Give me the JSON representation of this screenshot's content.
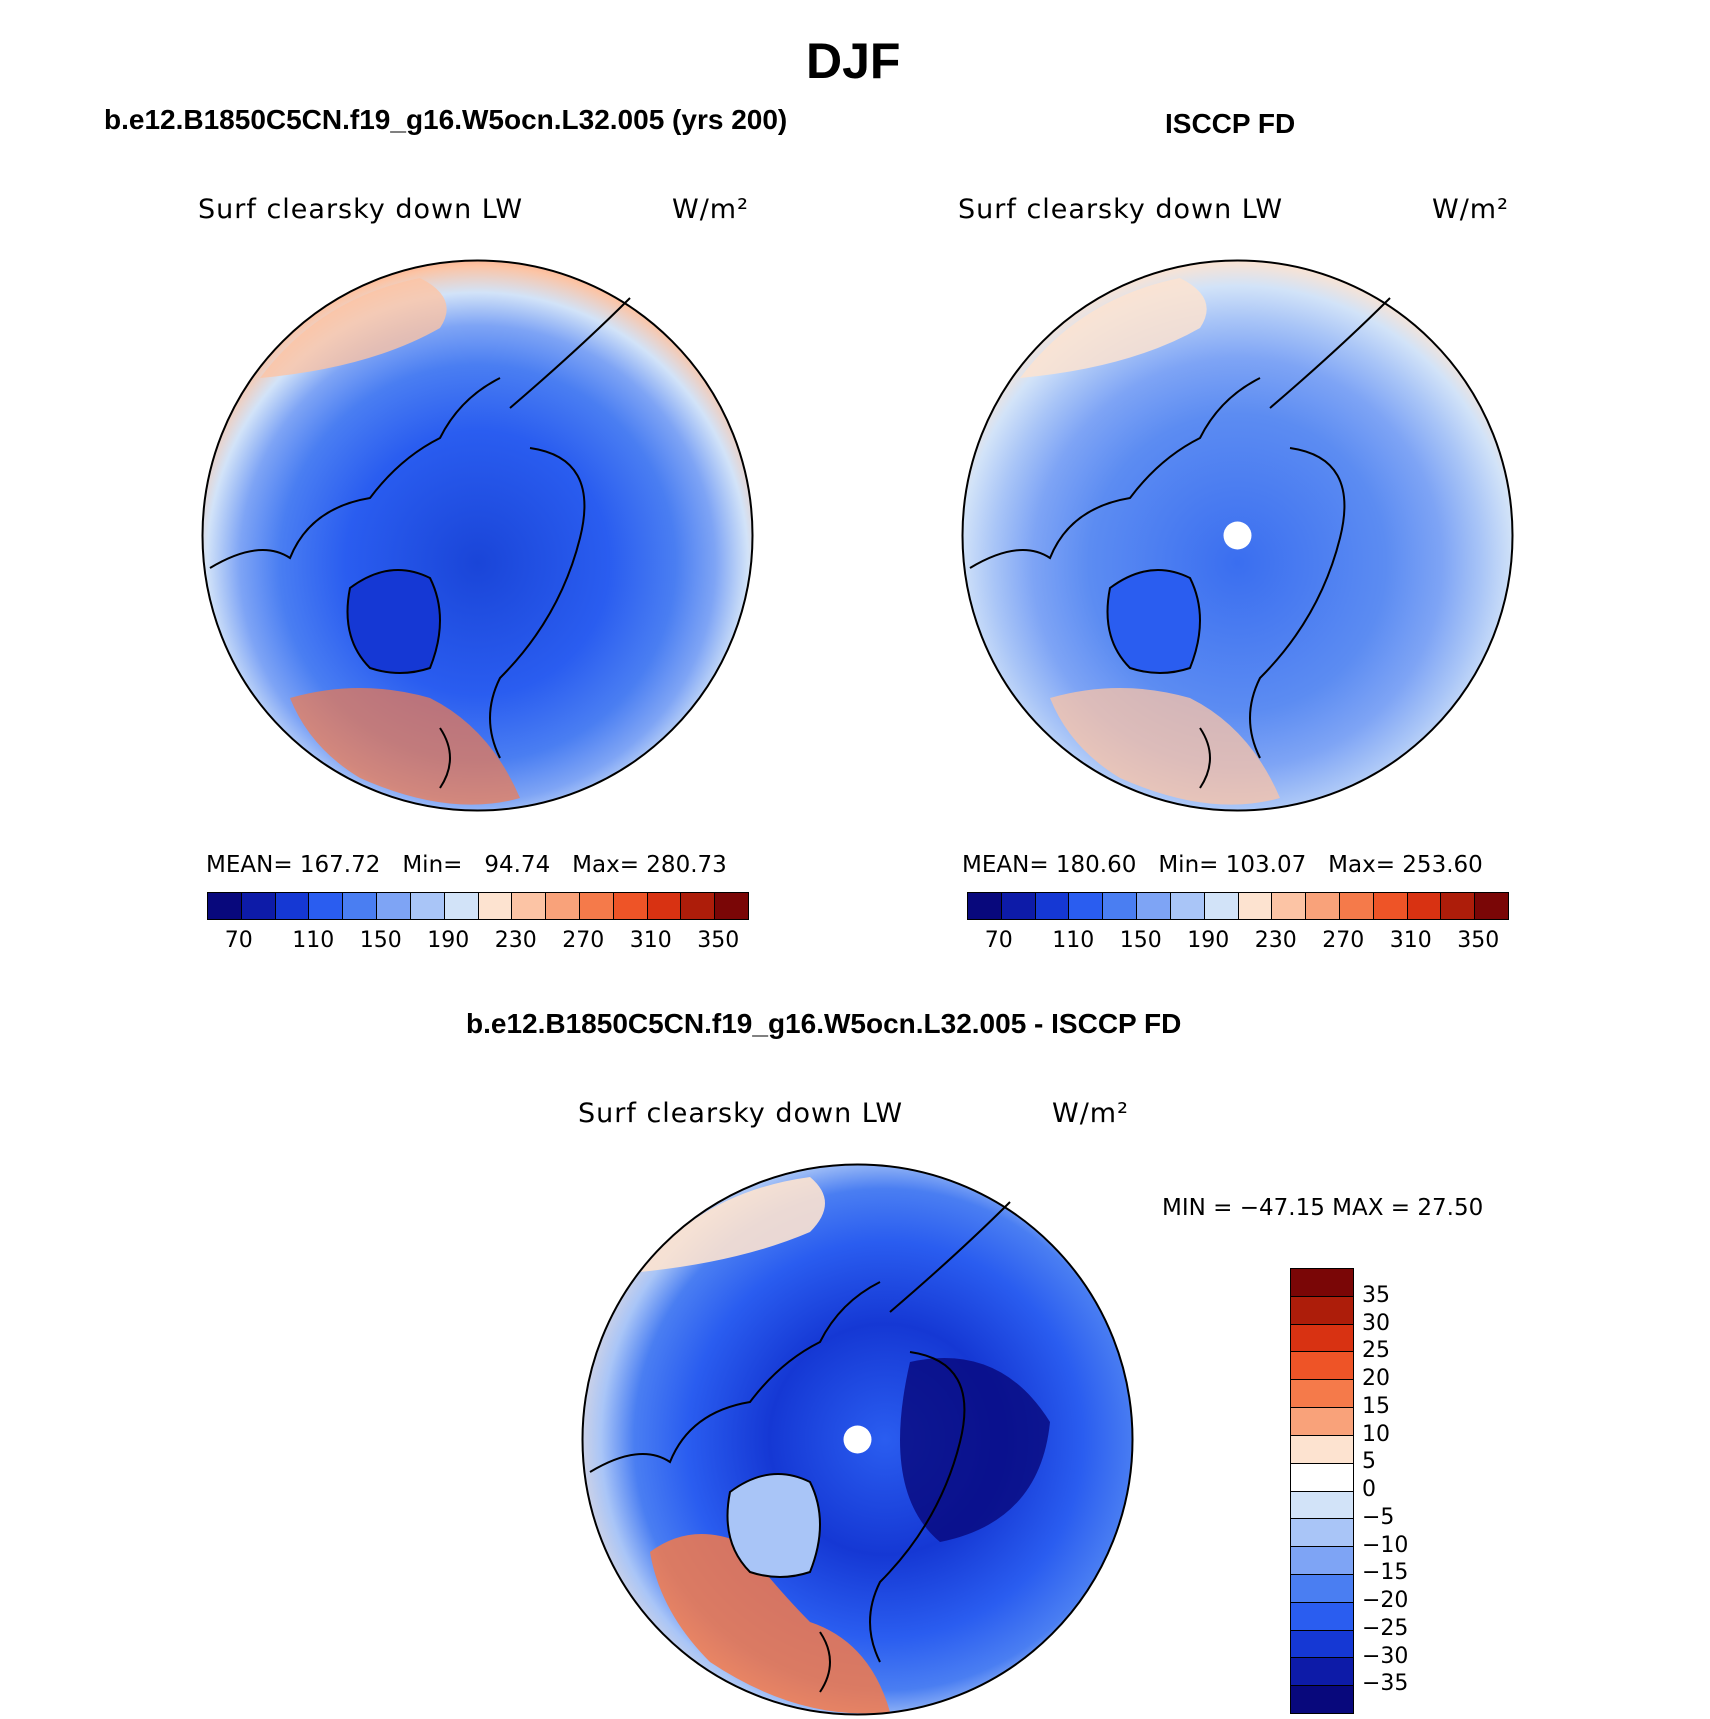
{
  "season": "DJF",
  "panels": [
    {
      "case": "b.e12.B1850C5CN.f19_g16.W5ocn.L32.005 (yrs 200)",
      "variable": "Surf clearsky down LW",
      "units": "W/m²",
      "mean_label": "MEAN=",
      "mean": "167.72",
      "min_label": "Min=",
      "min": "94.74",
      "max_label": "Max=",
      "max": "280.73"
    },
    {
      "case": "ISCCP FD",
      "variable": "Surf clearsky down LW",
      "units": "W/m²",
      "mean_label": "MEAN=",
      "mean": "180.60",
      "min_label": "Min=",
      "min": "103.07",
      "max_label": "Max=",
      "max": "253.60"
    }
  ],
  "diff": {
    "title": "b.e12.B1850C5CN.f19_g16.W5ocn.L32.005 - ISCCP FD",
    "variable": "Surf clearsky down LW",
    "units": "W/m²",
    "minmax": "MIN = −47.15 MAX =  27.50"
  },
  "colorbar_main": {
    "labels": [
      "70",
      "110",
      "150",
      "190",
      "230",
      "270",
      "310",
      "350"
    ],
    "colors": [
      "#08087c",
      "#0d1ba8",
      "#1538d4",
      "#2a5df0",
      "#4a7ef2",
      "#7ea4f5",
      "#a9c5f7",
      "#d2e3f8",
      "#fde3d0",
      "#fcc4a5",
      "#f9a27a",
      "#f57a4a",
      "#ee5427",
      "#d83212",
      "#ad1d0a",
      "#7a0606"
    ]
  },
  "colorbar_diff": {
    "labels": [
      "35",
      "30",
      "25",
      "20",
      "15",
      "10",
      "5",
      "0",
      "−5",
      "−10",
      "−15",
      "−20",
      "−25",
      "−30",
      "−35"
    ],
    "colors": [
      "#7a0606",
      "#ad1d0a",
      "#d83212",
      "#ee5427",
      "#f57a4a",
      "#f9a27a",
      "#fde3d0",
      "#ffffff",
      "#d2e3f8",
      "#a9c5f7",
      "#7ea4f5",
      "#4a7ef2",
      "#2a5df0",
      "#1538d4",
      "#0d1ba8",
      "#08087c"
    ]
  }
}
